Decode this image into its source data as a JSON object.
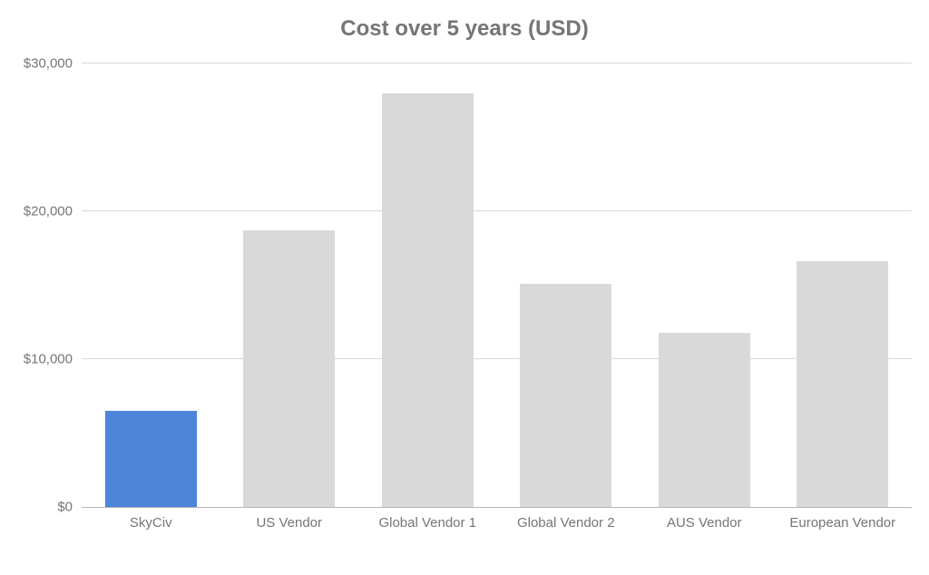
{
  "chart": {
    "type": "bar",
    "title": "Cost over 5 years (USD)",
    "title_fontsize": 24,
    "title_color": "#757575",
    "background_color": "#ffffff",
    "grid_color": "#d9d9d9",
    "axis_color": "#b7b7b7",
    "label_color": "#757575",
    "ylabel_fontsize": 15,
    "xlabel_fontsize": 15,
    "ylim": [
      0,
      30000
    ],
    "yticks": [
      0,
      10000,
      20000,
      30000
    ],
    "ytick_labels": [
      "$0",
      "$10,000",
      "$20,000",
      "$30,000"
    ],
    "categories": [
      "SkyCiv",
      "US Vendor",
      "Global Vendor 1",
      "Global Vendor 2",
      "AUS Vendor",
      "European Vendor"
    ],
    "values": [
      6500,
      18700,
      28000,
      15100,
      11800,
      16600
    ],
    "bar_colors": [
      "#4e85d8",
      "#d9d9d9",
      "#d9d9d9",
      "#d9d9d9",
      "#d9d9d9",
      "#d9d9d9"
    ],
    "bar_width": 0.66
  }
}
